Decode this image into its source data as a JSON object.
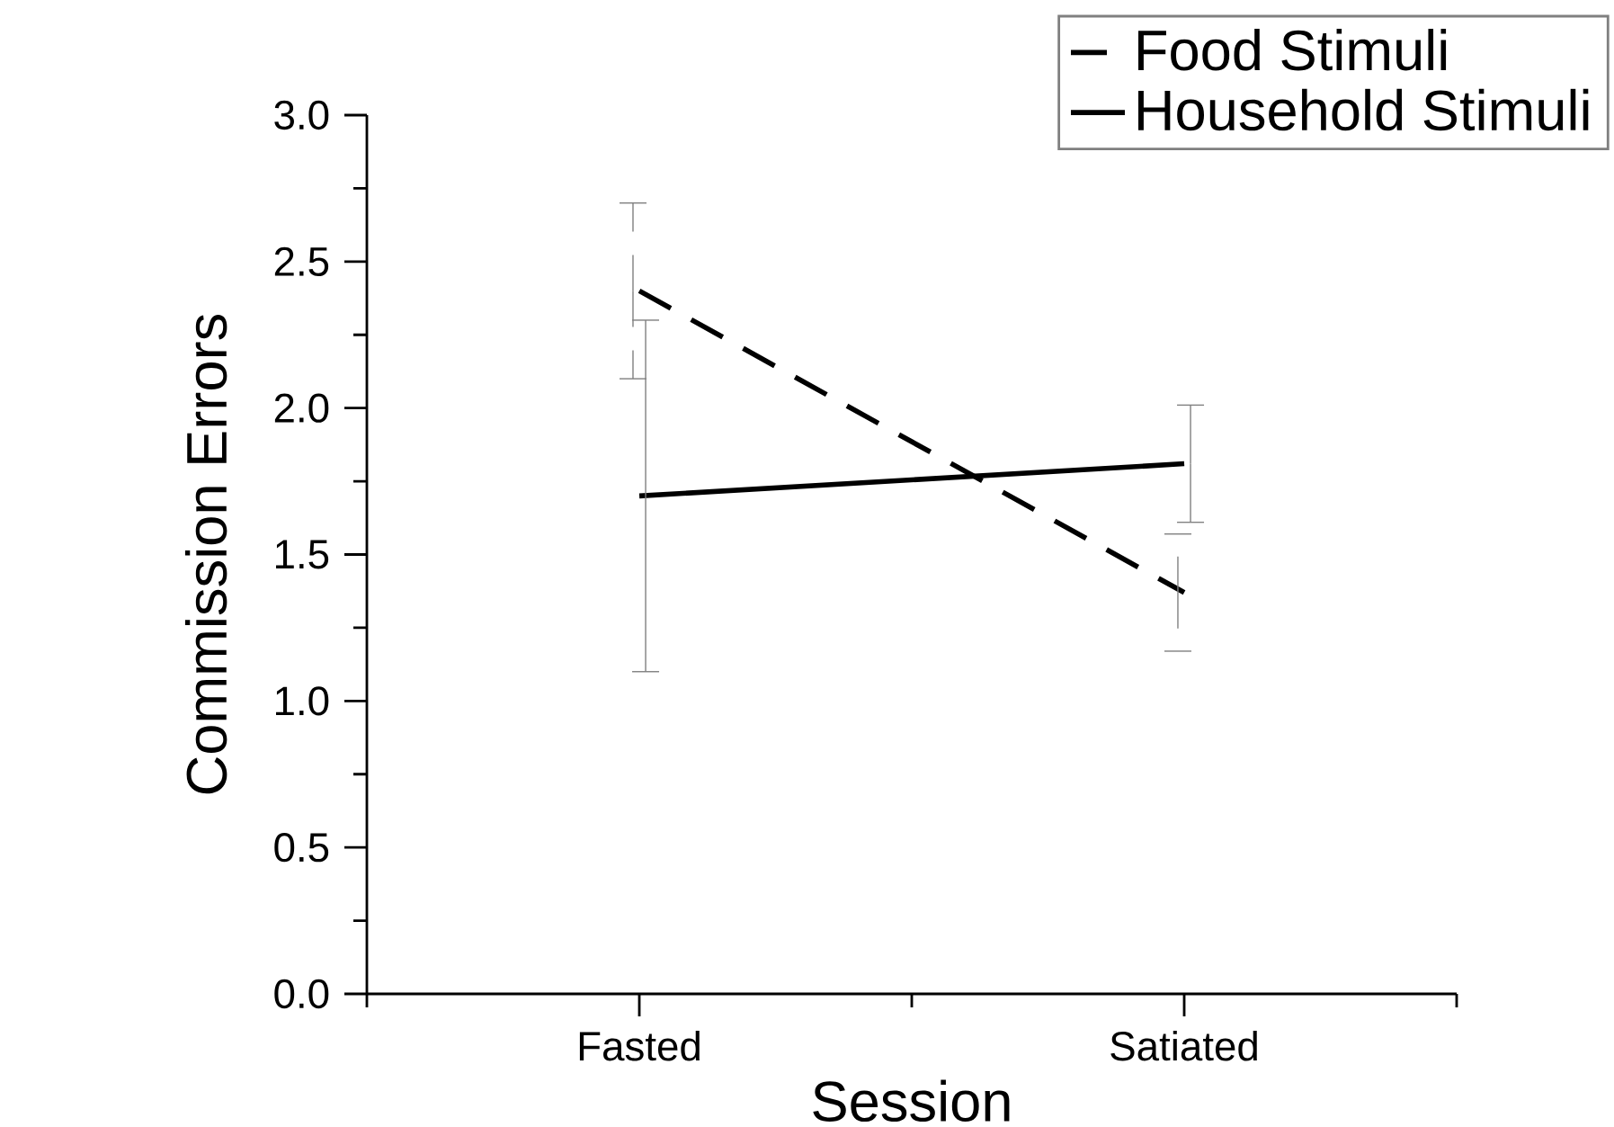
{
  "chart_data": {
    "type": "line",
    "xlabel": "Session",
    "ylabel": "Commission Errors",
    "categories": [
      "Fasted",
      "Satiated"
    ],
    "series": [
      {
        "name": "Food Stimuli",
        "color": "#000000",
        "line_style": "dashed",
        "values": [
          2.4,
          1.37
        ],
        "errors": [
          0.3,
          0.2
        ]
      },
      {
        "name": "Household Stimuli",
        "color": "#000000",
        "line_style": "solid",
        "values": [
          1.7,
          1.81
        ],
        "errors": [
          0.6,
          0.2
        ]
      }
    ],
    "ylim": [
      0,
      3
    ],
    "yticks": [
      {
        "value": 0,
        "label": "0.0"
      },
      {
        "value": 0.5,
        "label": "0.5"
      },
      {
        "value": 1,
        "label": "1.0"
      },
      {
        "value": 1.5,
        "label": "1.5"
      },
      {
        "value": 2,
        "label": "2.0"
      },
      {
        "value": 2.5,
        "label": "2.5"
      },
      {
        "value": 3,
        "label": "3.0"
      }
    ],
    "legend": "top right",
    "grid": false,
    "marker": "none"
  }
}
